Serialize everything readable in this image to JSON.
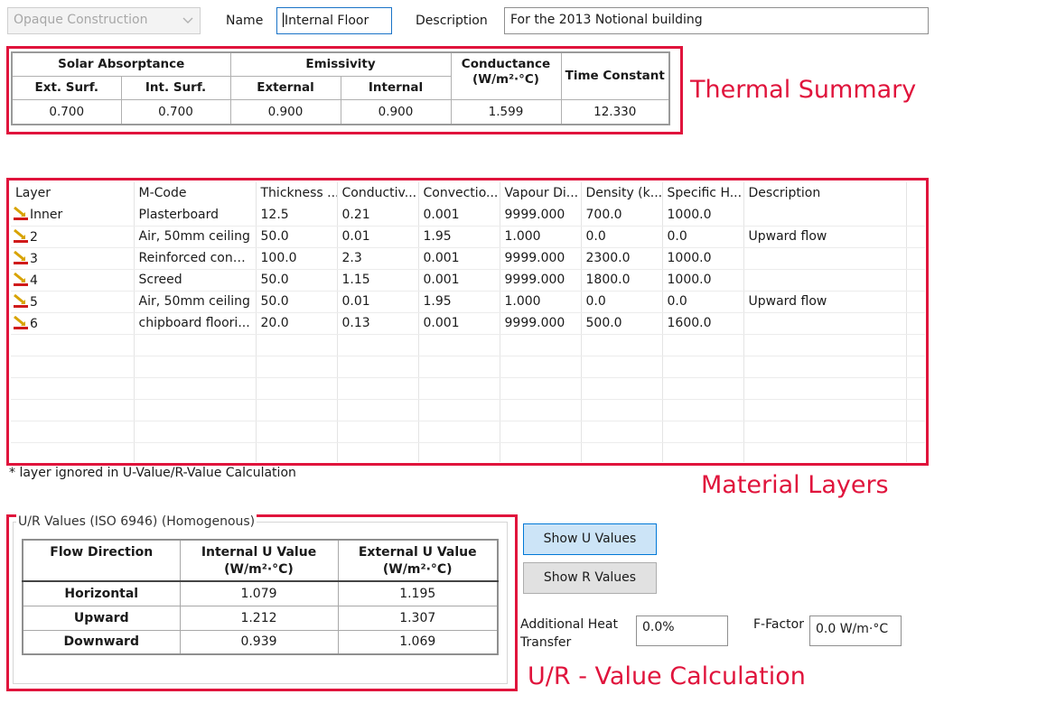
{
  "header": {
    "category_value": "Opaque Construction",
    "name_label": "Name",
    "name_value": "Internal Floor",
    "description_label": "Description",
    "description_value": "For the 2013 Notional building"
  },
  "thermal_summary": {
    "group_solar": "Solar Absorptance",
    "group_emissivity": "Emissivity",
    "conductance_label": "Conductance",
    "conductance_unit": "(W/m²·°C)",
    "time_constant_label": "Time Constant",
    "sub_ext": "Ext. Surf.",
    "sub_int": "Int. Surf.",
    "sub_external": "External",
    "sub_internal": "Internal",
    "values": {
      "solar_ext": "0.700",
      "solar_int": "0.700",
      "emis_ext": "0.900",
      "emis_int": "0.900",
      "conductance": "1.599",
      "time_constant": "12.330"
    },
    "annotation": "Thermal Summary"
  },
  "materials": {
    "columns": [
      "Layer",
      "M-Code",
      "Thickness ...",
      "Conductiv...",
      "Convectio...",
      "Vapour Di...",
      "Density (k...",
      "Specific H...",
      "Description"
    ],
    "rows": [
      [
        "Inner",
        "Plasterboard",
        "12.5",
        "0.21",
        "0.001",
        "9999.000",
        "700.0",
        "1000.0",
        ""
      ],
      [
        "2",
        "Air, 50mm ceiling",
        "50.0",
        "0.01",
        "1.95",
        "1.000",
        "0.0",
        "0.0",
        "Upward flow"
      ],
      [
        "3",
        "Reinforced concr...",
        "100.0",
        "2.3",
        "0.001",
        "9999.000",
        "2300.0",
        "1000.0",
        ""
      ],
      [
        "4",
        "Screed",
        "50.0",
        "1.15",
        "0.001",
        "9999.000",
        "1800.0",
        "1000.0",
        ""
      ],
      [
        "5",
        "Air, 50mm ceiling",
        "50.0",
        "0.01",
        "1.95",
        "1.000",
        "0.0",
        "0.0",
        "Upward flow"
      ],
      [
        "6",
        "chipboard floori...",
        "20.0",
        "0.13",
        "0.001",
        "9999.000",
        "500.0",
        "1600.0",
        ""
      ]
    ],
    "note": "* layer ignored in U-Value/R-Value Calculation",
    "annotation": "Material Layers"
  },
  "ur_values": {
    "group_title": "U/R Values (ISO 6946) (Homogenous)",
    "col_flow": "Flow Direction",
    "col_internal": "Internal U Value",
    "col_external": "External U Value",
    "unit": "(W/m²·°C)",
    "rows": [
      {
        "direction": "Horizontal",
        "internal": "1.079",
        "external": "1.195"
      },
      {
        "direction": "Upward",
        "internal": "1.212",
        "external": "1.307"
      },
      {
        "direction": "Downward",
        "internal": "0.939",
        "external": "1.069"
      }
    ],
    "show_u_label": "Show U Values",
    "show_r_label": "Show R Values",
    "additional_heat_label_1": "Additional Heat",
    "additional_heat_label_2": "Transfer",
    "additional_heat_value": "0.0%",
    "ffactor_label": "F-Factor",
    "ffactor_value": "0.0 W/m·°C",
    "annotation": "U/R - Value Calculation"
  },
  "colors": {
    "annotation_red": "#e0143c",
    "active_button": "#cce4f7",
    "active_button_border": "#0078d7"
  }
}
